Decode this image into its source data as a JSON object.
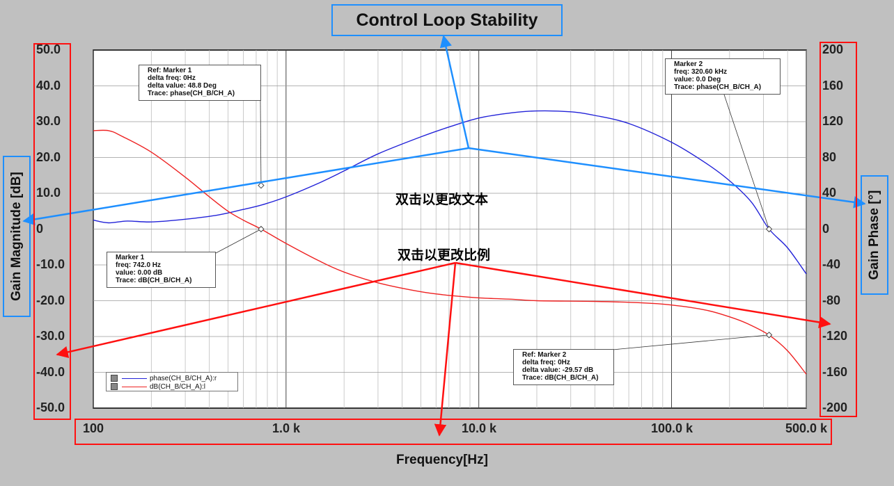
{
  "title": "Control Loop Stability",
  "overlay_text_1": "双击以更改文本",
  "overlay_text_2": "双击以更改比例",
  "colors": {
    "phase": "#2222d8",
    "gain": "#ee2222",
    "annot_blue": "#1e8fff",
    "annot_red": "#ff1010",
    "bg": "#c0c0c0"
  },
  "chart_data": {
    "type": "line",
    "xlabel": "Frequency[Hz]",
    "x_scale": "log",
    "xlim": [
      100,
      500000
    ],
    "x_ticks": [
      "100",
      "1.0 k",
      "10.0 k",
      "100.0 k",
      "500.0 k"
    ],
    "ylabel_left": "Gain Magnitude [dB]",
    "ylim_left": [
      -50,
      50
    ],
    "y_ticks_left": [
      "50.0",
      "40.0",
      "30.0",
      "20.0",
      "10.0",
      "0",
      "-10.0",
      "-20.0",
      "-30.0",
      "-40.0",
      "-50.0"
    ],
    "ylabel_right": "Gain Phase [°]",
    "ylim_right": [
      -200,
      200
    ],
    "y_ticks_right": [
      "200",
      "160",
      "120",
      "80",
      "40",
      "0",
      "-40",
      "-80",
      "-120",
      "-160",
      "-200"
    ],
    "grid": true,
    "legend_position": "bottom-left",
    "series": [
      {
        "name": "phase(CH_B/CH_A):r",
        "axis": "right",
        "x": [
          100,
          120,
          150,
          200,
          300,
          450,
          600,
          750,
          1000,
          1500,
          2000,
          3000,
          5000,
          7000,
          10000,
          15000,
          20000,
          30000,
          40000,
          60000,
          100000,
          150000,
          200000,
          260000,
          320600,
          400000,
          500000
        ],
        "y": [
          10,
          7,
          9,
          8,
          11,
          16,
          22,
          27,
          36,
          52,
          65,
          84,
          103,
          114,
          124,
          130,
          132,
          131,
          127,
          118,
          97,
          74,
          54,
          30,
          0,
          -21,
          -50
        ]
      },
      {
        "name": "dB(CH_B/CH_A):l",
        "axis": "left",
        "x": [
          100,
          120,
          140,
          200,
          300,
          400,
          500,
          600,
          742,
          1000,
          1500,
          2000,
          3000,
          5000,
          7000,
          10000,
          15000,
          20000,
          40000,
          70000,
          100000,
          150000,
          200000,
          250000,
          320600,
          400000,
          500000
        ],
        "y": [
          27.5,
          27.5,
          26,
          21.5,
          14.5,
          9,
          5,
          2.5,
          0,
          -4,
          -9,
          -12,
          -15,
          -17.5,
          -18.5,
          -19.2,
          -19.6,
          -20,
          -20.2,
          -20.6,
          -21.2,
          -22.6,
          -24.5,
          -26.5,
          -29.6,
          -34,
          -40.5
        ]
      }
    ],
    "markers": [
      {
        "lines": [
          "Ref: Marker 1",
          "delta freq: 0Hz",
          "delta value: 48.8  Deg",
          "Trace: phase(CH_B/CH_A)"
        ]
      },
      {
        "lines": [
          "Marker 1",
          "freq: 742.0  Hz",
          "value: 0.00  dB",
          "Trace: dB(CH_B/CH_A)"
        ]
      },
      {
        "lines": [
          "Marker 2",
          "freq: 320.60 kHz",
          "value: 0.0  Deg",
          "Trace: phase(CH_B/CH_A)"
        ]
      },
      {
        "lines": [
          "Ref: Marker 2",
          "delta freq: 0Hz",
          "delta value: -29.57  dB",
          "Trace: dB(CH_B/CH_A)"
        ]
      }
    ]
  }
}
